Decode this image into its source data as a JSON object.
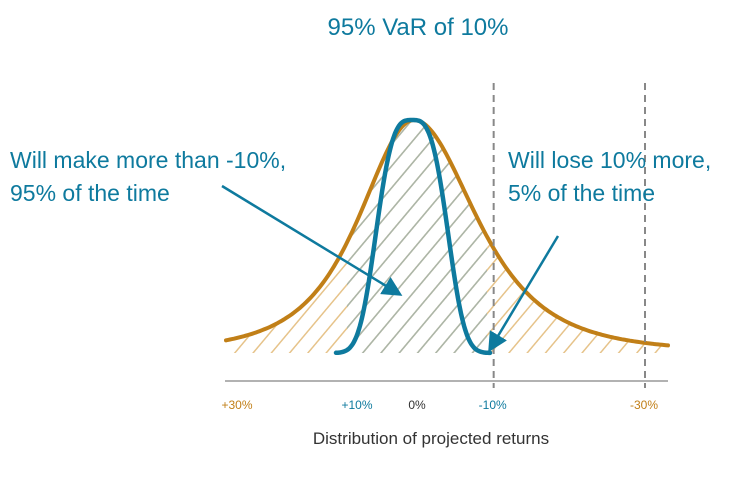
{
  "chart_data": {
    "type": "area",
    "title": "95% VaR of 10%",
    "xlabel": "Distribution of projected returns",
    "ylabel": "",
    "x_axis": {
      "direction": "decreasing",
      "ticks": [
        {
          "label": "+30%",
          "value": 30,
          "color": "#c17f17"
        },
        {
          "label": "+10%",
          "value": 10,
          "color": "#0e7a9e"
        },
        {
          "label": "0%",
          "value": 0,
          "color": "#333333"
        },
        {
          "label": "-10%",
          "value": -10,
          "color": "#0e7a9e"
        },
        {
          "label": "-30%",
          "value": -30,
          "color": "#c17f17"
        }
      ]
    },
    "thresholds": [
      {
        "value": -10,
        "style": "dashed",
        "color": "#888888"
      },
      {
        "value": -30,
        "style": "dashed",
        "color": "#888888"
      }
    ],
    "series": [
      {
        "color": "#c17f17",
        "shape": "wide-distribution",
        "x_range": [
          30,
          -30
        ],
        "hatch_color": "#e6c38a"
      },
      {
        "color": "#0e7a9e",
        "shape": "narrow-distribution",
        "x_range": [
          10,
          -10
        ],
        "hatch_color": "#aab6aa"
      }
    ],
    "annotations": [
      {
        "lines": [
          "Will make more than -10%,",
          "95% of the time"
        ],
        "color": "#0e7a9e",
        "points_to_value": 3
      },
      {
        "lines": [
          "Will lose 10% more,",
          "5% of the time"
        ],
        "color": "#0e7a9e",
        "points_to_value": -10
      }
    ],
    "grid": false,
    "legend": "none"
  }
}
